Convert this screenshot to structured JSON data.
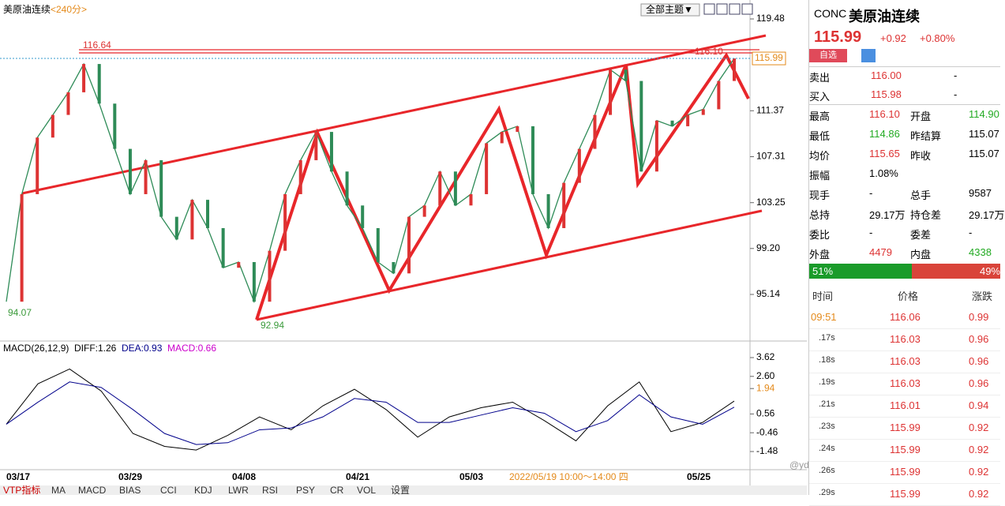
{
  "header": {
    "title": "美原油连续",
    "period": "<240分>",
    "theme_button": "全部主题▼"
  },
  "price_chart": {
    "yticks": [
      119.48,
      111.37,
      107.31,
      103.25,
      99.2,
      95.14
    ],
    "ytick_labels": [
      "119.48",
      "111.37",
      "107.31",
      "103.25",
      "99.20",
      "95.14"
    ],
    "current_price": "115.99",
    "high_label": "116.64",
    "recent_high_label": "116.10",
    "low_label": "94.07",
    "recent_low_label": "92.94",
    "closes": [
      94.5,
      104,
      109,
      111,
      113,
      115.5,
      112,
      108,
      104,
      107,
      102,
      100,
      103.5,
      101,
      97.5,
      98,
      94.5,
      99,
      104,
      107,
      109.5,
      106,
      103,
      101,
      98,
      97,
      102,
      103,
      106,
      103,
      104,
      108.5,
      109.5,
      110,
      104,
      101,
      105,
      108,
      111,
      115,
      114,
      106,
      110.5,
      110,
      111,
      111.5,
      114,
      115.99
    ]
  },
  "macd": {
    "label": "MACD(26,12,9)",
    "diff_label": "DIFF:1.26",
    "dea_label": "DEA:0.93",
    "macd_label": "MACD:0.66",
    "yticks": [
      3.62,
      2.6,
      1.94,
      0.56,
      -0.46,
      -1.48
    ],
    "ytick_labels": [
      "3.62",
      "2.60",
      "1.94",
      "0.56",
      "-0.46",
      "-1.48"
    ],
    "diff": [
      0,
      2.2,
      3.0,
      1.8,
      -0.5,
      -1.2,
      -1.4,
      -0.6,
      0.4,
      -0.3,
      1.0,
      1.9,
      0.8,
      -0.7,
      0.4,
      0.9,
      1.2,
      0.2,
      -0.9,
      1.0,
      2.3,
      -0.4,
      0.1,
      1.26
    ],
    "dea": [
      0,
      1.2,
      2.3,
      2.0,
      0.8,
      -0.5,
      -1.1,
      -1.0,
      -0.3,
      -0.2,
      0.4,
      1.4,
      1.2,
      0.1,
      0.1,
      0.5,
      0.9,
      0.6,
      -0.4,
      0.2,
      1.6,
      0.4,
      0.0,
      0.93
    ]
  },
  "x_labels": [
    "03/17",
    "03/29",
    "04/08",
    "04/21",
    "05/03",
    "05/25"
  ],
  "cursor_time": "2022/05/19 10:00～14:00 四",
  "tabs": [
    "VTP指标",
    "MA",
    "MACD",
    "BIAS",
    "CCI",
    "KDJ",
    "LWR",
    "RSI",
    "PSY",
    "CR",
    "VOL",
    "设置"
  ],
  "panel": {
    "code": "CONC",
    "name": "美原油连续",
    "price": "115.99",
    "change": "+0.92",
    "change_pct": "+0.80%",
    "watch_button": "自选",
    "quotes": [
      [
        "卖出",
        "116.00",
        "-"
      ],
      [
        "买入",
        "115.98",
        "-"
      ]
    ],
    "stats": [
      [
        "最高",
        "116.10",
        "开盘",
        "114.90"
      ],
      [
        "最低",
        "114.86",
        "昨结算",
        "115.07"
      ],
      [
        "均价",
        "115.65",
        "昨收",
        "115.07"
      ],
      [
        "振幅",
        "1.08%"
      ],
      [
        "现手",
        "-",
        "总手",
        "9587"
      ],
      [
        "总持",
        "29.17万",
        "持仓差",
        "29.17万"
      ],
      [
        "委比",
        "-",
        "委差",
        "-"
      ],
      [
        "外盘",
        "4479",
        "内盘",
        "4338"
      ]
    ],
    "buy_pct": "51%",
    "sell_pct": "49%",
    "tick_header": [
      "时间",
      "价格",
      "涨跌"
    ],
    "ticks": [
      [
        "09:51",
        "116.06",
        "0.99"
      ],
      [
        ".17s",
        "116.03",
        "0.96"
      ],
      [
        ".18s",
        "116.03",
        "0.96"
      ],
      [
        ".19s",
        "116.03",
        "0.96"
      ],
      [
        ".21s",
        "116.01",
        "0.94"
      ],
      [
        ".23s",
        "115.99",
        "0.92"
      ],
      [
        ".24s",
        "115.99",
        "0.92"
      ],
      [
        ".26s",
        "115.99",
        "0.92"
      ],
      [
        ".29s",
        "115.99",
        "0.92"
      ]
    ]
  },
  "watermark": "@yd"
}
